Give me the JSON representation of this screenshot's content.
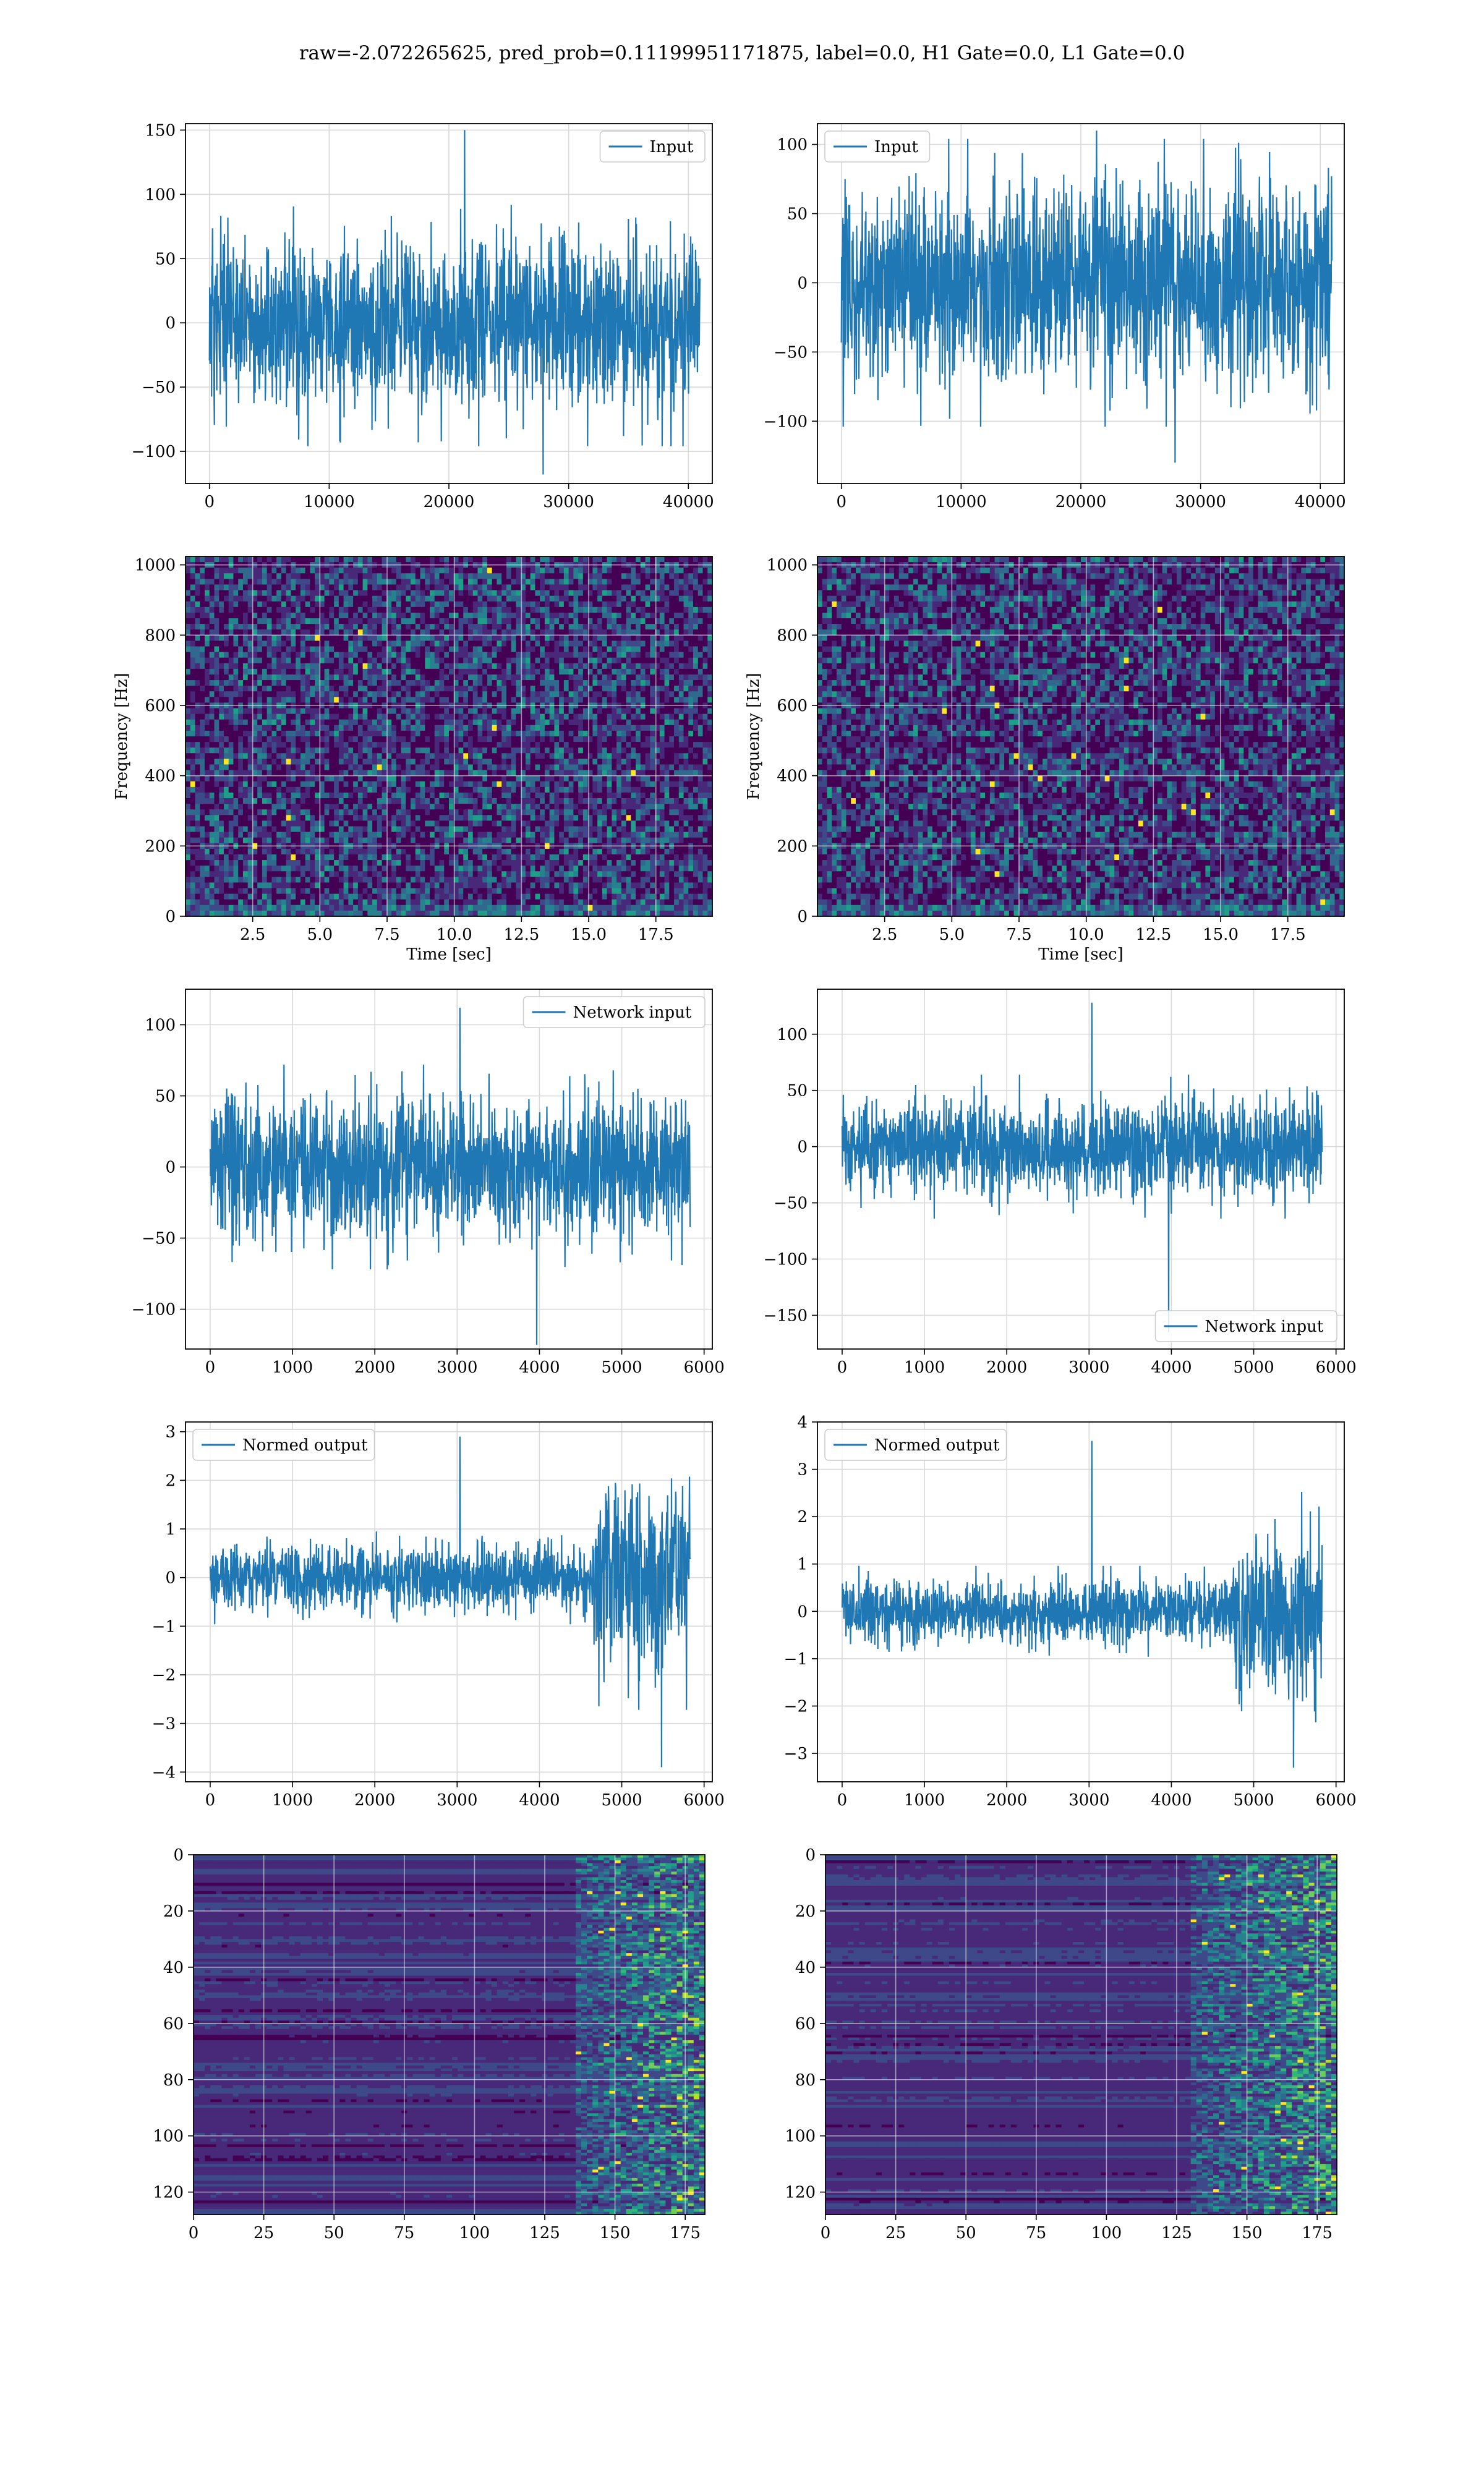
{
  "suptitle": "raw=-2.072265625, pred_prob=0.11199951171875, label=0.0, H1 Gate=0.0, L1 Gate=0.0",
  "colors": {
    "series": "#1f77b4",
    "grid": "#d9d9d9",
    "axes": "#000000"
  },
  "chart_data": [
    {
      "id": "h1-input",
      "type": "line",
      "legend": "Input",
      "legend_loc": "upper right",
      "xlim": [
        -2000,
        42000
      ],
      "ylim": [
        -125,
        155
      ],
      "xticks": [
        0,
        10000,
        20000,
        30000,
        40000
      ],
      "xticklabels": [
        "0",
        "10000",
        "20000",
        "30000",
        "40000"
      ],
      "yticks": [
        -100,
        -50,
        0,
        50,
        100,
        150
      ],
      "yticklabels": [
        "−100",
        "−50",
        "0",
        "50",
        "100",
        "150"
      ],
      "xlabel": "",
      "ylabel": "",
      "grid": true,
      "x_range": [
        0,
        40960
      ],
      "envelope": 60,
      "peak_max": 150,
      "peak_min": -118
    },
    {
      "id": "l1-input",
      "type": "line",
      "legend": "Input",
      "legend_loc": "upper left",
      "xlim": [
        -2000,
        42000
      ],
      "ylim": [
        -145,
        115
      ],
      "xticks": [
        0,
        10000,
        20000,
        30000,
        40000
      ],
      "xticklabels": [
        "0",
        "10000",
        "20000",
        "30000",
        "40000"
      ],
      "yticks": [
        -100,
        -50,
        0,
        50,
        100
      ],
      "yticklabels": [
        "−100",
        "−50",
        "0",
        "50",
        "100"
      ],
      "xlabel": "",
      "ylabel": "",
      "grid": true,
      "x_range": [
        0,
        40960
      ],
      "envelope": 65,
      "peak_max": 110,
      "peak_min": -130
    },
    {
      "id": "h1-spectrogram",
      "type": "heatmap",
      "colormap": "viridis",
      "xlim": [
        0,
        19.6
      ],
      "ylim": [
        0,
        1024
      ],
      "xticks": [
        2.5,
        5,
        7.5,
        10,
        12.5,
        15,
        17.5
      ],
      "xticklabels": [
        "2.5",
        "5.0",
        "7.5",
        "10.0",
        "12.5",
        "15.0",
        "17.5"
      ],
      "yticks": [
        0,
        200,
        400,
        600,
        800,
        1000
      ],
      "yticklabels": [
        "0",
        "200",
        "400",
        "600",
        "800",
        "1000"
      ],
      "xlabel": "Time [sec]",
      "ylabel": "Frequency [Hz]",
      "grid": true
    },
    {
      "id": "l1-spectrogram",
      "type": "heatmap",
      "colormap": "viridis",
      "xlim": [
        0,
        19.6
      ],
      "ylim": [
        0,
        1024
      ],
      "xticks": [
        2.5,
        5,
        7.5,
        10,
        12.5,
        15,
        17.5
      ],
      "xticklabels": [
        "2.5",
        "5.0",
        "7.5",
        "10.0",
        "12.5",
        "15.0",
        "17.5"
      ],
      "yticks": [
        0,
        200,
        400,
        600,
        800,
        1000
      ],
      "yticklabels": [
        "0",
        "200",
        "400",
        "600",
        "800",
        "1000"
      ],
      "xlabel": "Time [sec]",
      "ylabel": "Frequency [Hz]",
      "grid": true
    },
    {
      "id": "h1-network-input",
      "type": "line",
      "legend": "Network input",
      "legend_loc": "upper right",
      "xlim": [
        -300,
        6100
      ],
      "ylim": [
        -128,
        125
      ],
      "xticks": [
        0,
        1000,
        2000,
        3000,
        4000,
        5000,
        6000
      ],
      "xticklabels": [
        "0",
        "1000",
        "2000",
        "3000",
        "4000",
        "5000",
        "6000"
      ],
      "yticks": [
        -100,
        -50,
        0,
        50,
        100
      ],
      "yticklabels": [
        "−100",
        "−50",
        "0",
        "50",
        "100"
      ],
      "xlabel": "",
      "ylabel": "",
      "grid": true,
      "x_range": [
        0,
        5830
      ],
      "envelope": 45,
      "peak_max": 112,
      "peak_min": -125
    },
    {
      "id": "l1-network-input",
      "type": "line",
      "legend": "Network input",
      "legend_loc": "lower right",
      "xlim": [
        -300,
        6100
      ],
      "ylim": [
        -180,
        140
      ],
      "xticks": [
        0,
        1000,
        2000,
        3000,
        4000,
        5000,
        6000
      ],
      "xticklabels": [
        "0",
        "1000",
        "2000",
        "3000",
        "4000",
        "5000",
        "6000"
      ],
      "yticks": [
        -150,
        -100,
        -50,
        0,
        50,
        100
      ],
      "yticklabels": [
        "−150",
        "−100",
        "−50",
        "0",
        "50",
        "100"
      ],
      "xlabel": "",
      "ylabel": "",
      "grid": true,
      "x_range": [
        0,
        5830
      ],
      "envelope": 40,
      "peak_max": 128,
      "peak_min": -165
    },
    {
      "id": "h1-normed-output",
      "type": "line",
      "legend": "Normed output",
      "legend_loc": "upper left",
      "xlim": [
        -300,
        6100
      ],
      "ylim": [
        -4.2,
        3.2
      ],
      "xticks": [
        0,
        1000,
        2000,
        3000,
        4000,
        5000,
        6000
      ],
      "xticklabels": [
        "0",
        "1000",
        "2000",
        "3000",
        "4000",
        "5000",
        "6000"
      ],
      "yticks": [
        -4,
        -3,
        -2,
        -1,
        0,
        1,
        2,
        3
      ],
      "yticklabels": [
        "−4",
        "−3",
        "−2",
        "−1",
        "0",
        "1",
        "2",
        "3"
      ],
      "xlabel": "",
      "ylabel": "",
      "grid": true,
      "x_range": [
        0,
        5830
      ],
      "envelope": 0.6,
      "burst_start": 4650,
      "burst_envelope": 1.7,
      "peak_max": 2.9,
      "peak_min": -3.9
    },
    {
      "id": "l1-normed-output",
      "type": "line",
      "legend": "Normed output",
      "legend_loc": "upper left",
      "xlim": [
        -300,
        6100
      ],
      "ylim": [
        -3.6,
        4.0
      ],
      "xticks": [
        0,
        1000,
        2000,
        3000,
        4000,
        5000,
        6000
      ],
      "xticklabels": [
        "0",
        "1000",
        "2000",
        "3000",
        "4000",
        "5000",
        "6000"
      ],
      "yticks": [
        -3,
        -2,
        -1,
        0,
        1,
        2,
        3,
        4
      ],
      "yticklabels": [
        "−3",
        "−2",
        "−1",
        "0",
        "1",
        "2",
        "3",
        "4"
      ],
      "xlabel": "",
      "ylabel": "",
      "grid": true,
      "x_range": [
        0,
        5830
      ],
      "envelope": 0.6,
      "burst_start": 4750,
      "burst_envelope": 1.6,
      "peak_max": 3.6,
      "peak_min": -3.3
    },
    {
      "id": "h1-feature-map",
      "type": "heatmap",
      "colormap": "viridis",
      "xlim": [
        0,
        182
      ],
      "ylim": [
        128,
        0
      ],
      "xticks": [
        0,
        25,
        50,
        75,
        100,
        125,
        150,
        175
      ],
      "xticklabels": [
        "0",
        "25",
        "50",
        "75",
        "100",
        "125",
        "150",
        "175"
      ],
      "yticks": [
        0,
        20,
        40,
        60,
        80,
        100,
        120
      ],
      "yticklabels": [
        "0",
        "20",
        "40",
        "60",
        "80",
        "100",
        "120"
      ],
      "xlabel": "",
      "ylabel": "",
      "grid": true,
      "active_from": 135
    },
    {
      "id": "l1-feature-map",
      "type": "heatmap",
      "colormap": "viridis",
      "xlim": [
        0,
        182
      ],
      "ylim": [
        128,
        0
      ],
      "xticks": [
        0,
        25,
        50,
        75,
        100,
        125,
        150,
        175
      ],
      "xticklabels": [
        "0",
        "25",
        "50",
        "75",
        "100",
        "125",
        "150",
        "175"
      ],
      "yticks": [
        0,
        20,
        40,
        60,
        80,
        100,
        120
      ],
      "yticklabels": [
        "0",
        "20",
        "40",
        "60",
        "80",
        "100",
        "120"
      ],
      "xlabel": "",
      "ylabel": "",
      "grid": true,
      "active_from": 130
    }
  ]
}
